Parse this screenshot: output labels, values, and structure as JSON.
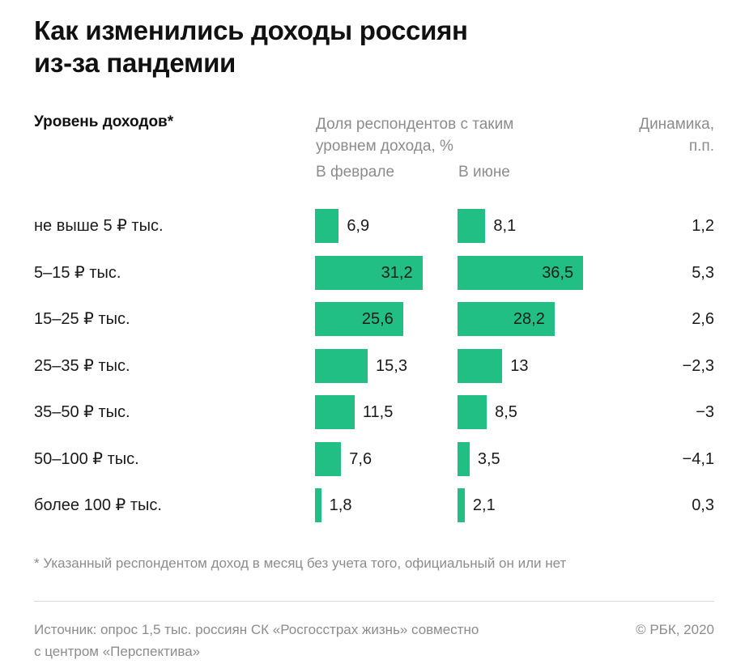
{
  "title_line1": "Как изменились доходы россиян",
  "title_line2": "из-за пандемии",
  "headers": {
    "levels": "Уровень доходов*",
    "share_line1": "Доля респондентов с таким",
    "share_line2": "уровнем дохода, %",
    "dynamics_line1": "Динамика,",
    "dynamics_line2": "п.п.",
    "feb": "В феврале",
    "jun": "В июне"
  },
  "chart_data": {
    "type": "bar",
    "categories": [
      "не выше 5 ₽ тыс.",
      "5–15 ₽ тыс.",
      "15–25 ₽ тыс.",
      "25–35 ₽ тыс.",
      "35–50 ₽ тыс.",
      "50–100 ₽ тыс.",
      "более 100 ₽ тыс."
    ],
    "series": [
      {
        "name": "В феврале",
        "values": [
          6.9,
          31.2,
          25.6,
          15.3,
          11.5,
          7.6,
          1.8
        ],
        "labels": [
          "6,9",
          "31,2",
          "25,6",
          "15,3",
          "11,5",
          "7,6",
          "1,8"
        ]
      },
      {
        "name": "В июне",
        "values": [
          8.1,
          36.5,
          28.2,
          13,
          8.5,
          3.5,
          2.1
        ],
        "labels": [
          "8,1",
          "36,5",
          "28,2",
          "13",
          "8,5",
          "3,5",
          "2,1"
        ]
      }
    ],
    "dynamics": [
      "1,2",
      "5,3",
      "2,6",
      "−2,3",
      "−3",
      "−4,1",
      "0,3"
    ],
    "bar_color": "#22bf85"
  },
  "footnote": "* Указанный респондентом доход в месяц без учета того, официальный он или нет",
  "source_line1": "Источник: опрос 1,5 тыс. россиян СК «Росгосстрах жизнь» совместно",
  "source_line2": "с центром «Перспектива»",
  "copyright": "© РБК, 2020"
}
